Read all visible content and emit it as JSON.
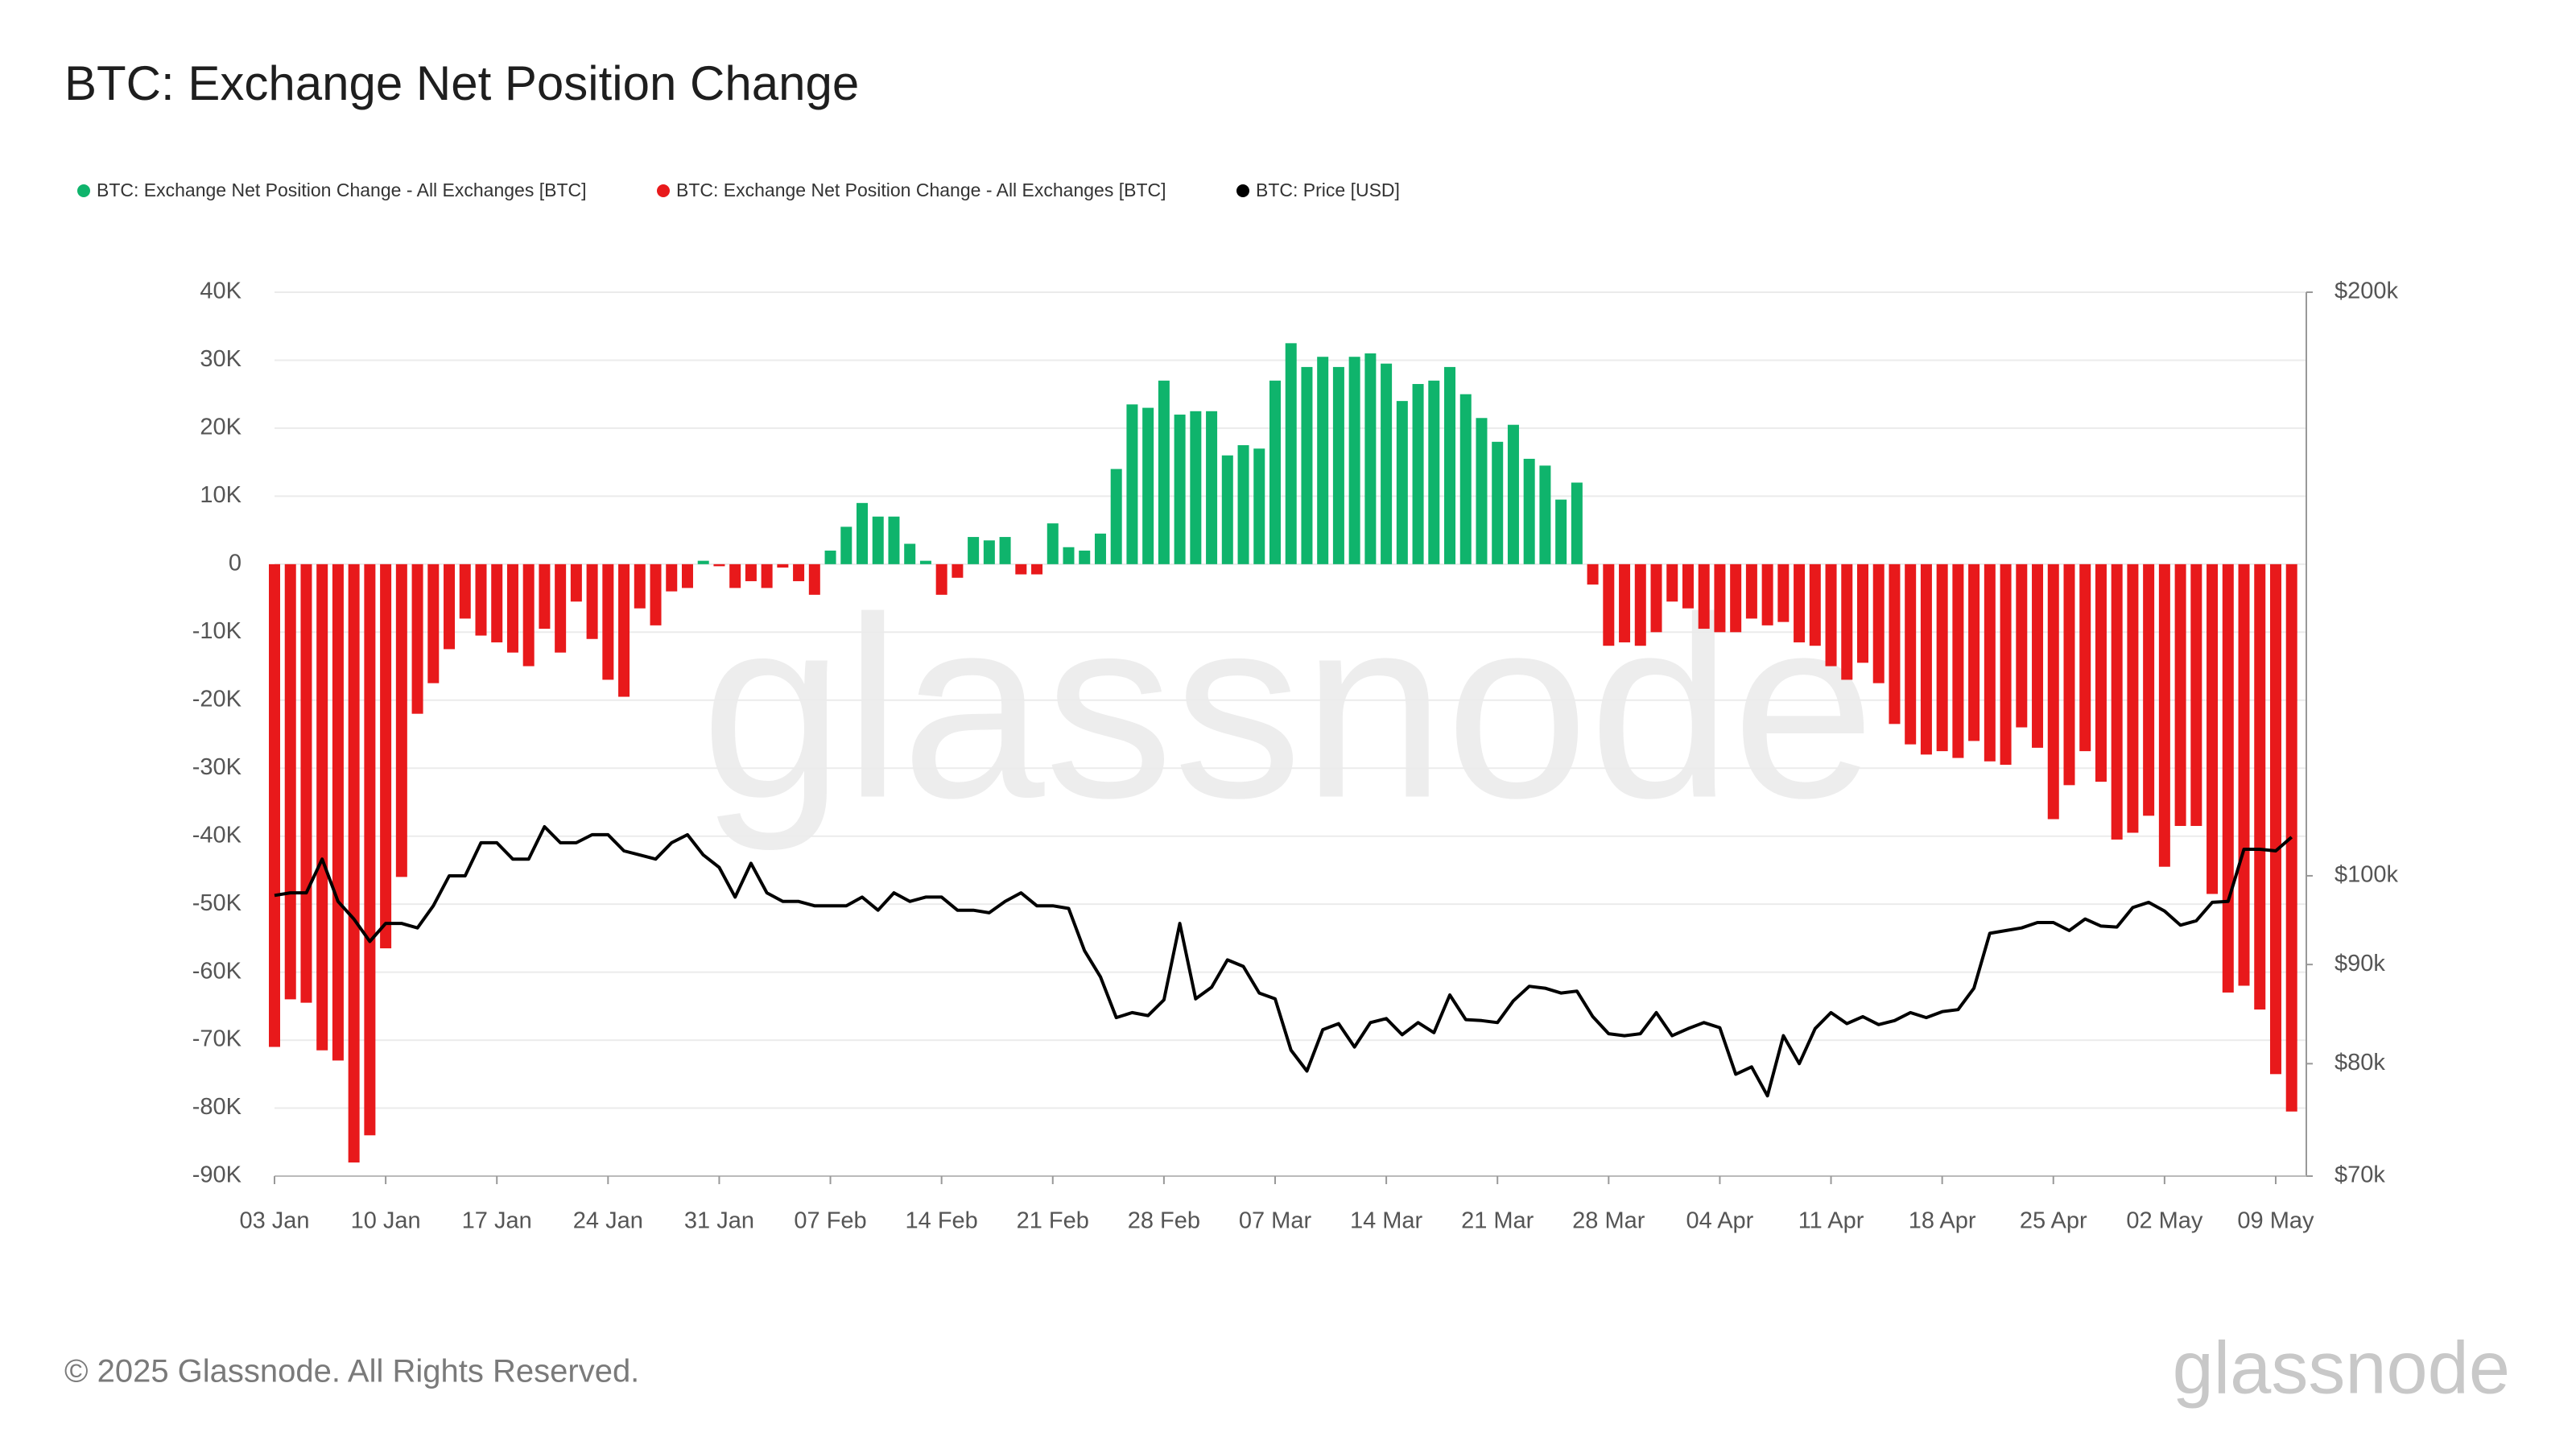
{
  "chart_data": {
    "type": "bar",
    "title": "BTC: Exchange Net Position Change",
    "watermark": "glassnode",
    "logo": "glassnode",
    "copyright": "© 2025 Glassnode. All Rights Reserved.",
    "categories": [
      "03 Jan",
      null,
      null,
      null,
      null,
      null,
      null,
      "10 Jan",
      null,
      null,
      null,
      null,
      null,
      null,
      "17 Jan",
      null,
      null,
      null,
      null,
      null,
      null,
      "24 Jan",
      null,
      null,
      null,
      null,
      null,
      null,
      "31 Jan",
      null,
      null,
      null,
      null,
      null,
      null,
      "07 Feb",
      null,
      null,
      null,
      null,
      null,
      null,
      "14 Feb",
      null,
      null,
      null,
      null,
      null,
      null,
      "21 Feb",
      null,
      null,
      null,
      null,
      null,
      null,
      "28 Feb",
      null,
      null,
      null,
      null,
      null,
      null,
      "07 Mar",
      null,
      null,
      null,
      null,
      null,
      null,
      "14 Mar",
      null,
      null,
      null,
      null,
      null,
      null,
      "21 Mar",
      null,
      null,
      null,
      null,
      null,
      null,
      "28 Mar",
      null,
      null,
      null,
      null,
      null,
      null,
      "04 Apr",
      null,
      null,
      null,
      null,
      null,
      null,
      "11 Apr",
      null,
      null,
      null,
      null,
      null,
      null,
      "18 Apr",
      null,
      null,
      null,
      null,
      null,
      null,
      "25 Apr",
      null,
      null,
      null,
      null,
      null,
      null,
      "02 May",
      null,
      null,
      null,
      null,
      null,
      null,
      "09 May",
      null
    ],
    "series": [
      {
        "name": "BTC: Exchange Net Position Change - All Exchanges [BTC]",
        "type": "bar",
        "color": "#0fb46c",
        "values": [
          null,
          null,
          null,
          null,
          null,
          null,
          null,
          null,
          null,
          null,
          null,
          null,
          null,
          null,
          null,
          null,
          null,
          null,
          null,
          null,
          null,
          null,
          null,
          null,
          null,
          null,
          null,
          500,
          null,
          null,
          null,
          null,
          null,
          null,
          null,
          2000,
          5500,
          9000,
          7000,
          7000,
          3000,
          500,
          null,
          null,
          4000,
          3500,
          4000,
          null,
          null,
          6000,
          2500,
          2000,
          4500,
          14000,
          23500,
          23000,
          27000,
          22000,
          22500,
          22500,
          16000,
          17500,
          17000,
          27000,
          32500,
          29000,
          30500,
          29000,
          30500,
          31000,
          29500,
          24000,
          26500,
          27000,
          29000,
          25000,
          21500,
          18000,
          20500,
          15500,
          14500,
          9500,
          12000,
          null,
          null,
          null,
          null,
          null,
          null,
          null,
          null,
          null,
          null,
          null,
          null,
          null,
          null,
          null,
          null,
          null,
          null,
          null,
          null,
          null,
          null,
          null,
          null,
          null,
          null,
          null,
          null,
          null,
          null,
          null,
          null,
          null,
          null,
          null,
          null,
          null,
          null,
          null,
          null,
          null,
          null,
          null,
          null,
          null
        ]
      },
      {
        "name": "BTC: Exchange Net Position Change - All Exchanges [BTC]",
        "type": "bar",
        "color": "#e8191b",
        "values": [
          -71000,
          -64000,
          -64500,
          -71500,
          -73000,
          -88000,
          -84000,
          -56500,
          -46000,
          -22000,
          -17500,
          -12500,
          -8000,
          -10500,
          -11500,
          -13000,
          -15000,
          -9500,
          -13000,
          -5500,
          -11000,
          -17000,
          -19500,
          -6500,
          -9000,
          -4000,
          -3500,
          null,
          -300,
          -3500,
          -2500,
          -3500,
          -500,
          -2500,
          -4500,
          null,
          null,
          null,
          null,
          null,
          null,
          null,
          -4500,
          -2000,
          null,
          null,
          null,
          -1500,
          -1500,
          null,
          null,
          null,
          null,
          null,
          null,
          null,
          null,
          null,
          null,
          null,
          null,
          null,
          null,
          null,
          null,
          null,
          null,
          null,
          null,
          null,
          null,
          null,
          null,
          null,
          null,
          null,
          null,
          null,
          null,
          null,
          null,
          null,
          null,
          -3000,
          -12000,
          -11500,
          -12000,
          -10000,
          -5500,
          -6500,
          -9500,
          -10000,
          -10000,
          -8000,
          -9000,
          -8500,
          -11500,
          -12000,
          -15000,
          -17000,
          -14500,
          -17500,
          -23500,
          -26500,
          -28000,
          -27500,
          -28500,
          -26000,
          -29000,
          -29500,
          -24000,
          -27000,
          -37500,
          -32500,
          -27500,
          -32000,
          -40500,
          -39500,
          -37000,
          -44500,
          -38500,
          -38500,
          -48500,
          -63000,
          -62000,
          -65500,
          -75000,
          -80500
        ]
      },
      {
        "name": "BTC: Price [USD]",
        "type": "line",
        "axis": "y2",
        "color": "#000000",
        "values": [
          97700,
          98000,
          98000,
          102000,
          97000,
          95000,
          92500,
          94500,
          94500,
          94000,
          96500,
          100000,
          100000,
          104000,
          104000,
          102000,
          102000,
          106000,
          104000,
          104000,
          105000,
          105000,
          103000,
          102500,
          102000,
          104000,
          105000,
          102500,
          101000,
          97500,
          101500,
          98000,
          97000,
          97000,
          96500,
          96500,
          96500,
          97500,
          96000,
          98000,
          97000,
          97500,
          97500,
          96000,
          96000,
          95700,
          97000,
          98000,
          96500,
          96500,
          96200,
          91500,
          88700,
          84500,
          85000,
          84700,
          86300,
          94500,
          86400,
          87600,
          90500,
          89800,
          87000,
          86400,
          81300,
          79300,
          83300,
          83900,
          81600,
          84000,
          84400,
          82800,
          84000,
          83000,
          86800,
          84300,
          84200,
          84000,
          86200,
          87700,
          87500,
          87000,
          87200,
          84600,
          82900,
          82700,
          82900,
          85000,
          82700,
          83400,
          84000,
          83500,
          79000,
          79700,
          77000,
          82700,
          80000,
          83400,
          85000,
          83900,
          84600,
          83800,
          84200,
          85000,
          84500,
          85100,
          85300,
          87500,
          93400,
          93700,
          94000,
          94600,
          94600,
          93700,
          95000,
          94200,
          94100,
          96300,
          96900,
          95900,
          94300,
          94800,
          96900,
          97000,
          103200,
          103200,
          103000,
          104700
        ]
      }
    ],
    "ylim": [
      -90000,
      40000
    ],
    "yticks": [
      {
        "value": -90000,
        "label": "-90K"
      },
      {
        "value": -80000,
        "label": "-80K"
      },
      {
        "value": -70000,
        "label": "-70K"
      },
      {
        "value": -60000,
        "label": "-60K"
      },
      {
        "value": -50000,
        "label": "-50K"
      },
      {
        "value": -40000,
        "label": "-40K"
      },
      {
        "value": -30000,
        "label": "-30K"
      },
      {
        "value": -20000,
        "label": "-20K"
      },
      {
        "value": -10000,
        "label": "-10K"
      },
      0,
      {
        "value": 10000,
        "label": "10K"
      },
      {
        "value": 20000,
        "label": "20K"
      },
      {
        "value": 30000,
        "label": "30K"
      },
      {
        "value": 40000,
        "label": "40K"
      }
    ],
    "y2lim": [
      70000,
      200000
    ],
    "y2log": true,
    "y2ticks": [
      {
        "value": 70000,
        "label": "$70k"
      },
      {
        "value": 80000,
        "label": "$80k"
      },
      {
        "value": 90000,
        "label": "$90k"
      },
      {
        "value": 100000,
        "label": "$100k"
      },
      {
        "value": 200000,
        "label": "$200k"
      }
    ],
    "grid": true
  }
}
